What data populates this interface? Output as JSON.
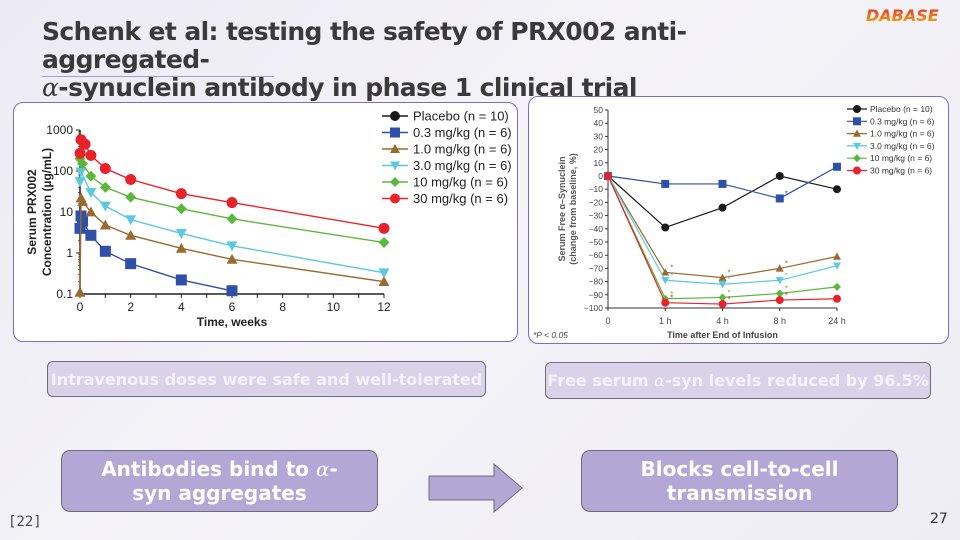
{
  "slide": {
    "title_line1": "Schenk et al: testing the safety of PRX002 anti-aggregated-",
    "title_line2_greek": "α",
    "title_line2_rest": "-synuclein antibody in phase 1 clinical trial",
    "logo_text": "DABASE",
    "reference": "[22]",
    "page_number": "27",
    "colors": {
      "accent": "#7d6cc4",
      "box_light": "#d9d2e9",
      "box_dark": "#b3a7d6"
    }
  },
  "callouts": {
    "left_info": "Intravenous doses were safe and well-tolerated",
    "right_info_pre": "Free serum ",
    "right_info_greek": "α",
    "right_info_post": "-syn levels reduced by 96.5%",
    "mechanism_left_pre": "Antibodies bind to ",
    "mechanism_left_greek": "α",
    "mechanism_left_post": "-syn aggregates",
    "mechanism_right": "Blocks cell-to-cell transmission",
    "arrow_icon": "right-arrow-icon"
  },
  "chart_data": [
    {
      "type": "line",
      "title": "",
      "xlabel": "Time, weeks",
      "ylabel": "Serum PRX002 Concentration (µg/mL)",
      "yscale": "log",
      "ylim": [
        0.1,
        1000
      ],
      "xlim": [
        0,
        12
      ],
      "xticks": [
        0,
        2,
        4,
        6,
        8,
        10,
        12
      ],
      "yticks": [
        "0.1",
        "1",
        "10",
        "100",
        "1000"
      ],
      "legend_position": "top-right",
      "series": [
        {
          "name": "Placebo (n = 10)",
          "color": "#1a1a1a",
          "marker": "circle",
          "points": []
        },
        {
          "name": "0.3 mg/kg (n = 6)",
          "color": "#2f4fa8",
          "marker": "square",
          "points": [
            [
              0,
              4
            ],
            [
              0.04,
              8
            ],
            [
              0.1,
              6
            ],
            [
              0.43,
              2.7
            ],
            [
              1,
              1.1
            ],
            [
              2,
              0.55
            ],
            [
              4,
              0.22
            ],
            [
              6,
              0.12
            ]
          ]
        },
        {
          "name": "1.0 mg/kg (n = 6)",
          "color": "#9a6a2f",
          "marker": "triangle-up",
          "points": [
            [
              0,
              0.11
            ],
            [
              0.04,
              22
            ],
            [
              0.1,
              18
            ],
            [
              0.43,
              10
            ],
            [
              1,
              4.8
            ],
            [
              2,
              2.7
            ],
            [
              4,
              1.3
            ],
            [
              6,
              0.7
            ],
            [
              12,
              0.2
            ]
          ]
        },
        {
          "name": "3.0 mg/kg (n = 6)",
          "color": "#5cc9e0",
          "marker": "triangle-down",
          "points": [
            [
              0,
              55
            ],
            [
              0.04,
              95
            ],
            [
              0.43,
              30
            ],
            [
              1,
              14
            ],
            [
              2,
              6.5
            ],
            [
              4,
              3
            ],
            [
              6,
              1.5
            ],
            [
              12,
              0.33
            ]
          ]
        },
        {
          "name": "10 mg/kg (n = 6)",
          "color": "#5cb83c",
          "marker": "diamond",
          "points": [
            [
              0,
              200
            ],
            [
              0.1,
              150
            ],
            [
              0.43,
              75
            ],
            [
              1,
              40
            ],
            [
              2,
              23
            ],
            [
              4,
              12
            ],
            [
              6,
              6.8
            ],
            [
              12,
              1.8
            ]
          ]
        },
        {
          "name": "30 mg/kg (n = 6)",
          "color": "#e8222a",
          "marker": "circle",
          "points": [
            [
              0,
              270
            ],
            [
              0.04,
              580
            ],
            [
              0.2,
              450
            ],
            [
              0.43,
              240
            ],
            [
              1,
              115
            ],
            [
              2,
              62
            ],
            [
              4,
              28
            ],
            [
              6,
              17
            ],
            [
              12,
              4
            ]
          ]
        }
      ]
    },
    {
      "type": "line",
      "title": "",
      "xlabel": "Time after End of Infusion",
      "ylabel": "Serum Free α–Synuclein (change from baseline, %)",
      "ylim": [
        -100,
        50
      ],
      "yticks": [
        50,
        40,
        30,
        20,
        10,
        0,
        -10,
        -20,
        -30,
        -40,
        -50,
        -60,
        -70,
        -80,
        -90,
        -100
      ],
      "categories": [
        "0",
        "1 h",
        "4 h",
        "8 h",
        "24 h"
      ],
      "footnote": "*P < 0.05",
      "legend_position": "top-right",
      "series": [
        {
          "name": "Placebo (n = 10)",
          "color": "#1a1a1a",
          "marker": "circle",
          "values": [
            0,
            -39,
            -24,
            0,
            -10
          ],
          "significant": [
            false,
            false,
            false,
            false,
            false
          ]
        },
        {
          "name": "0.3 mg/kg (n = 6)",
          "color": "#2f4fa8",
          "marker": "square",
          "values": [
            0,
            -6,
            -6,
            -17,
            7
          ],
          "significant": [
            false,
            false,
            false,
            true,
            false
          ]
        },
        {
          "name": "1.0 mg/kg (n = 6)",
          "color": "#9a6a2f",
          "marker": "triangle-up",
          "values": [
            0,
            -73,
            -77,
            -70,
            -61
          ],
          "significant": [
            false,
            true,
            true,
            true,
            false
          ]
        },
        {
          "name": "3.0 mg/kg (n = 6)",
          "color": "#5cc9e0",
          "marker": "triangle-down",
          "values": [
            0,
            -79,
            -82,
            -79,
            -68
          ],
          "significant": [
            false,
            true,
            true,
            true,
            false
          ]
        },
        {
          "name": "10 mg/kg (n = 6)",
          "color": "#5cb83c",
          "marker": "diamond",
          "values": [
            0,
            -93,
            -92,
            -89,
            -84
          ],
          "significant": [
            false,
            true,
            true,
            true,
            false
          ]
        },
        {
          "name": "30 mg/kg (n = 6)",
          "color": "#e8222a",
          "marker": "circle",
          "values": [
            0,
            -96,
            -97,
            -94,
            -93
          ],
          "significant": [
            false,
            true,
            true,
            true,
            false
          ]
        }
      ]
    }
  ]
}
